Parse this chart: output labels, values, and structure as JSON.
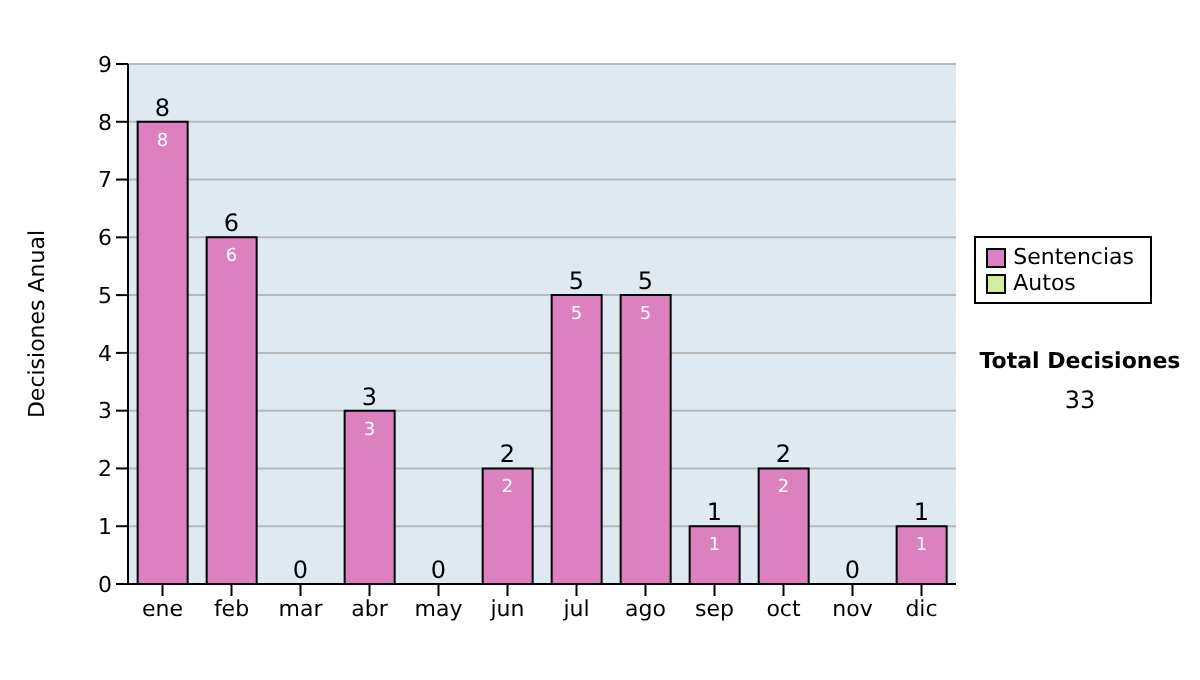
{
  "chart_data": {
    "type": "bar",
    "ylabel": "Decisiones Anual",
    "categories": [
      "ene",
      "feb",
      "mar",
      "abr",
      "may",
      "jun",
      "jul",
      "ago",
      "sep",
      "oct",
      "nov",
      "dic"
    ],
    "series": [
      {
        "name": "Sentencias",
        "color": "#dd80c0",
        "values": [
          8,
          6,
          0,
          3,
          0,
          2,
          5,
          5,
          1,
          2,
          0,
          1
        ],
        "value_labels": [
          "8",
          "6",
          null,
          "3",
          null,
          "2",
          "5",
          "5",
          "1",
          "2",
          null,
          "1"
        ]
      },
      {
        "name": "Autos",
        "color": "#d4eca0",
        "values": [
          0,
          0,
          0,
          0,
          0,
          0,
          0,
          0,
          0,
          0,
          0,
          0
        ]
      }
    ],
    "stacked": true,
    "totals": [
      "8",
      "6",
      "0",
      "3",
      "0",
      "2",
      "5",
      "5",
      "1",
      "2",
      "0",
      "1"
    ],
    "ylim": [
      0,
      9
    ],
    "yticks": [
      0,
      1,
      2,
      3,
      4,
      5,
      6,
      7,
      8,
      9
    ],
    "grid": "y",
    "legend": "right",
    "annotations": [
      "Total Decisiones",
      "33"
    ]
  }
}
